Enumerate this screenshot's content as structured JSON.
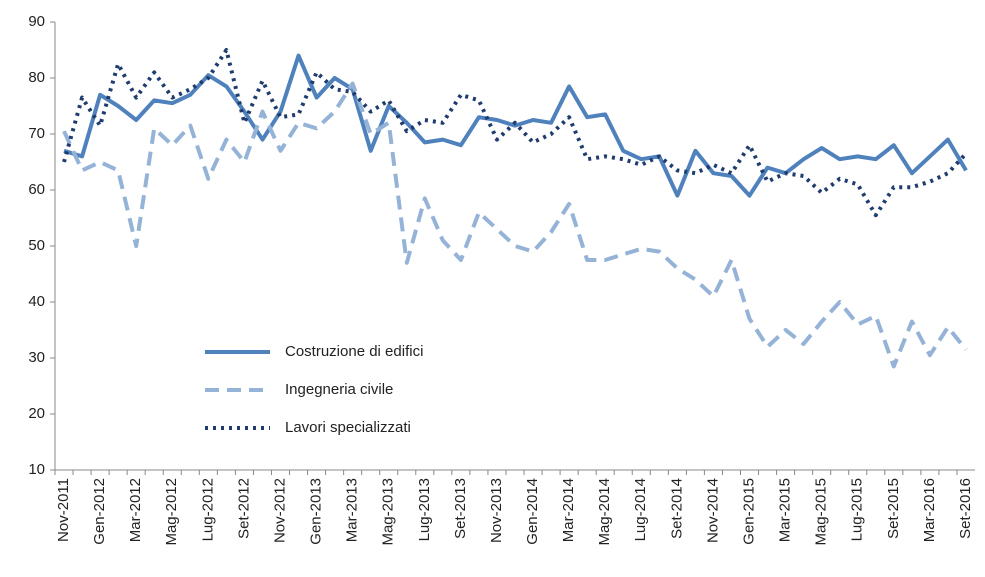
{
  "chart_data": {
    "type": "line",
    "categories": [
      "Nov-2011",
      null,
      "Gen-2012",
      null,
      "Mar-2012",
      null,
      "Mag-2012",
      null,
      "Lug-2012",
      null,
      "Set-2012",
      null,
      "Nov-2012",
      null,
      "Gen-2013",
      null,
      "Mar-2013",
      null,
      "Mag-2013",
      null,
      "Lug-2013",
      null,
      "Set-2013",
      null,
      "Nov-2013",
      null,
      "Gen-2014",
      null,
      "Mar-2014",
      null,
      "Mag-2014",
      null,
      "Lug-2014",
      null,
      "Set-2014",
      null,
      "Nov-2014",
      null,
      "Gen-2015",
      null,
      "Mar-2015",
      null,
      "Mag-2015",
      null,
      "Lug-2015",
      null,
      "Set-2015",
      null,
      "Mar-2016",
      null,
      "Set-2016"
    ],
    "series": [
      {
        "name": "Costruzione di edifici",
        "color": "#4f81bd",
        "dash": "solid",
        "values": [
          67,
          66,
          77,
          75,
          72.5,
          76,
          75.5,
          77,
          80.5,
          78.5,
          74,
          69,
          74,
          84,
          76.5,
          80,
          78,
          67,
          75,
          72,
          68.5,
          69,
          68,
          73,
          72.5,
          71.5,
          72.5,
          72,
          78.5,
          73,
          73.5,
          67,
          65.5,
          66,
          59,
          67,
          63,
          62.5,
          59,
          64,
          63,
          65.5,
          67.5,
          65.5,
          66,
          65.5,
          68,
          63,
          66,
          69,
          63.5
        ]
      },
      {
        "name": "Ingegneria civile",
        "color": "#95b3d7",
        "dash": "dashed",
        "values": [
          70.5,
          63.5,
          65,
          63.5,
          50,
          71,
          68,
          71.5,
          62,
          69,
          65,
          74,
          67,
          72,
          71,
          74,
          79,
          70,
          72,
          47,
          58.5,
          51,
          47.5,
          56,
          53,
          50,
          49,
          52.5,
          57.5,
          47.5,
          47.5,
          48.5,
          49.5,
          49,
          46,
          44,
          41,
          47.5,
          37,
          32,
          35,
          32.5,
          36.5,
          40,
          36,
          37.5,
          28.5,
          36.5,
          30.5,
          35.5,
          31.5
        ]
      },
      {
        "name": "Lavori specializzati",
        "color": "#1f3c6e",
        "dash": "dotted",
        "values": [
          65,
          76.5,
          71.5,
          82.5,
          76.5,
          81,
          76.5,
          78,
          80,
          85,
          72,
          79.5,
          73,
          73.5,
          81,
          78,
          77.5,
          74,
          76,
          70.5,
          72.5,
          72,
          77,
          76,
          69,
          72,
          68.5,
          70,
          73,
          65.5,
          66,
          65.5,
          64.5,
          66,
          63.5,
          63,
          64.5,
          63,
          68,
          61.5,
          63,
          62.5,
          59.5,
          62,
          61,
          55.5,
          60.5,
          60.5,
          61.5,
          63,
          66.5
        ]
      }
    ],
    "ylim": [
      10,
      90
    ],
    "yticks": [
      10,
      20,
      30,
      40,
      50,
      60,
      70,
      80,
      90
    ],
    "grid": false,
    "legend": "left"
  }
}
